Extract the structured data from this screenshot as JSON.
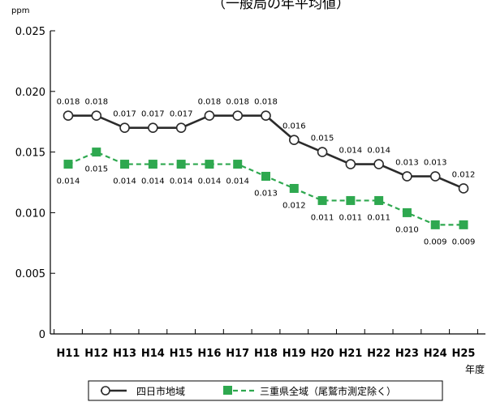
{
  "colors": {
    "yokkaichi": "#2b2b2b",
    "mie": "#2ea84f",
    "marker_fill_open": "#ffffff",
    "axis": "#000000"
  },
  "chart_data": {
    "type": "line",
    "title": "（一般局の年平均値）",
    "y_unit": "ppm",
    "x_unit": "年度",
    "ylim": [
      0,
      0.025
    ],
    "yticks": [
      "0",
      "0.005",
      "0.010",
      "0.015",
      "0.020",
      "0.025"
    ],
    "ytick_values": [
      0,
      0.005,
      0.01,
      0.015,
      0.02,
      0.025
    ],
    "grid": false,
    "legend_position": "bottom",
    "categories": [
      "H11",
      "H12",
      "H13",
      "H14",
      "H15",
      "H16",
      "H17",
      "H18",
      "H19",
      "H20",
      "H21",
      "H22",
      "H23",
      "H24",
      "H25"
    ],
    "series": [
      {
        "name": "四日市地域",
        "color": "#2b2b2b",
        "marker": "open-circle",
        "line_style": "solid",
        "labels_position": "above",
        "values": [
          0.018,
          0.018,
          0.017,
          0.017,
          0.017,
          0.018,
          0.018,
          0.018,
          0.016,
          0.015,
          0.014,
          0.014,
          0.013,
          0.013,
          0.012
        ],
        "labels": [
          "0.018",
          "0.018",
          "0.017",
          "0.017",
          "0.017",
          "0.018",
          "0.018",
          "0.018",
          "0.016",
          "0.015",
          "0.014",
          "0.014",
          "0.013",
          "0.013",
          "0.012"
        ]
      },
      {
        "name": "三重県全域（尾鷲市測定除く）",
        "color": "#2ea84f",
        "marker": "filled-square",
        "line_style": "dashed",
        "labels_position": "below",
        "values": [
          0.014,
          0.015,
          0.014,
          0.014,
          0.014,
          0.014,
          0.014,
          0.013,
          0.012,
          0.011,
          0.011,
          0.011,
          0.01,
          0.009,
          0.009
        ],
        "labels": [
          "0.014",
          "0.015",
          "0.014",
          "0.014",
          "0.014",
          "0.014",
          "0.014",
          "0.013",
          "0.012",
          "0.011",
          "0.011",
          "0.011",
          "0.010",
          "0.009",
          "0.009"
        ]
      }
    ]
  }
}
